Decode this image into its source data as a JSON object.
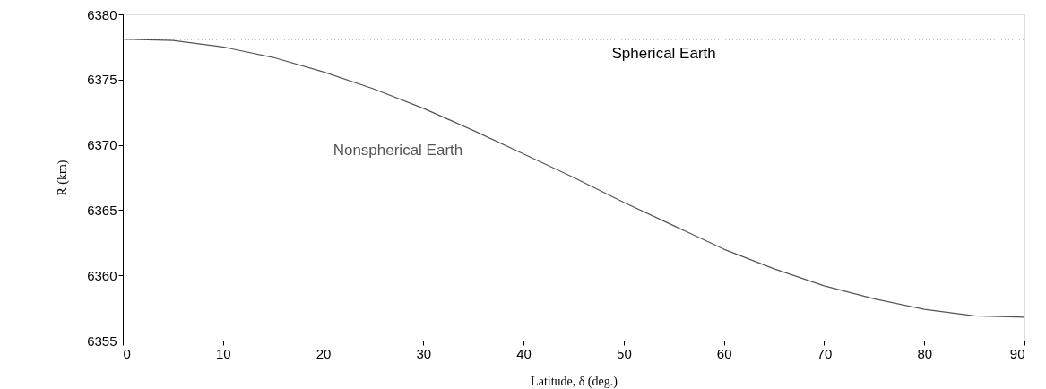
{
  "chart_data": {
    "type": "line",
    "xlabel": "Latitude, δ (deg.)",
    "ylabel": "R (km)",
    "x": [
      0,
      5,
      10,
      15,
      20,
      25,
      30,
      35,
      40,
      45,
      50,
      55,
      60,
      65,
      70,
      75,
      80,
      85,
      90
    ],
    "series": [
      {
        "name": "Nonspherical Earth",
        "color": "#555555",
        "values": [
          6378.1,
          6378.0,
          6377.5,
          6376.7,
          6375.6,
          6374.3,
          6372.8,
          6371.1,
          6369.3,
          6367.5,
          6365.6,
          6363.8,
          6362.0,
          6360.5,
          6359.2,
          6358.2,
          6357.4,
          6356.9,
          6356.8
        ]
      }
    ],
    "ref_lines": [
      {
        "axis": "y",
        "value": 6378.1,
        "label": "Spherical Earth",
        "color": "#000000",
        "line_style": "dotted"
      }
    ],
    "xlim": [
      0,
      90
    ],
    "xticks": [
      0,
      10,
      20,
      30,
      40,
      50,
      60,
      70,
      80,
      90
    ],
    "ylim": [
      6355,
      6380
    ],
    "yticks": [
      6355,
      6360,
      6365,
      6370,
      6375,
      6380
    ],
    "grid": false,
    "marker": "none",
    "line_style": "solid"
  }
}
